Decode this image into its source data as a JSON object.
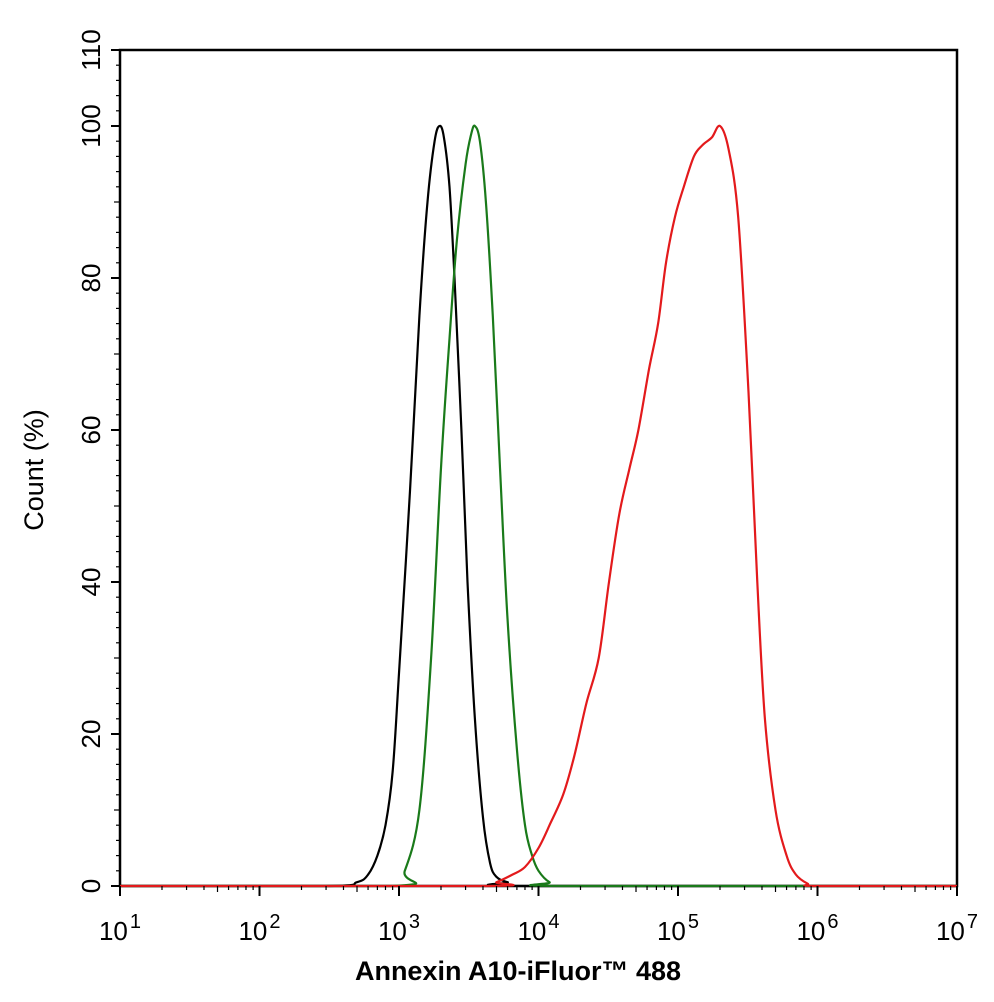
{
  "chart_data": {
    "type": "line",
    "xlabel": "Annexin A10-iFluor™ 488",
    "ylabel": "Count  (%)",
    "x_scale": "log",
    "xlim": [
      10,
      10000000
    ],
    "ylim": [
      0,
      110
    ],
    "grid": false,
    "legend": "none",
    "x_ticks": [
      {
        "value": 10,
        "base": "10",
        "exp": "1"
      },
      {
        "value": 100,
        "base": "10",
        "exp": "2"
      },
      {
        "value": 1000,
        "base": "10",
        "exp": "3"
      },
      {
        "value": 10000,
        "base": "10",
        "exp": "4"
      },
      {
        "value": 100000,
        "base": "10",
        "exp": "5"
      },
      {
        "value": 1000000,
        "base": "10",
        "exp": "6"
      },
      {
        "value": 10000000,
        "base": "10",
        "exp": "7"
      }
    ],
    "y_ticks": [
      0,
      20,
      40,
      60,
      80,
      100,
      110
    ],
    "y_ticks_labels": [
      "0",
      "20",
      "40",
      "60",
      "80",
      "100",
      "110"
    ],
    "series": [
      {
        "color": "#000000",
        "points": [
          [
            10,
            0
          ],
          [
            300,
            0
          ],
          [
            500,
            0.5
          ],
          [
            600,
            1.5
          ],
          [
            700,
            4
          ],
          [
            800,
            8
          ],
          [
            900,
            15
          ],
          [
            1000,
            28
          ],
          [
            1200,
            52
          ],
          [
            1400,
            75
          ],
          [
            1600,
            90
          ],
          [
            1800,
            98
          ],
          [
            1950,
            100
          ],
          [
            2100,
            98.5
          ],
          [
            2300,
            92
          ],
          [
            2500,
            80
          ],
          [
            2800,
            60
          ],
          [
            3100,
            40
          ],
          [
            3500,
            22
          ],
          [
            4000,
            9
          ],
          [
            4500,
            3
          ],
          [
            5000,
            1.2
          ],
          [
            6000,
            0.5
          ],
          [
            8000,
            0
          ],
          [
            10000000,
            0
          ]
        ]
      },
      {
        "color": "#1a7a1a",
        "points": [
          [
            10,
            0
          ],
          [
            900,
            0
          ],
          [
            1100,
            2
          ],
          [
            1400,
            10
          ],
          [
            1700,
            30
          ],
          [
            2000,
            55
          ],
          [
            2300,
            72
          ],
          [
            2600,
            85
          ],
          [
            3000,
            95
          ],
          [
            3300,
            99
          ],
          [
            3500,
            100
          ],
          [
            3800,
            98
          ],
          [
            4200,
            90
          ],
          [
            4700,
            75
          ],
          [
            5300,
            55
          ],
          [
            6000,
            35
          ],
          [
            7000,
            18
          ],
          [
            8000,
            8
          ],
          [
            9000,
            4
          ],
          [
            10000,
            2
          ],
          [
            12000,
            0.5
          ],
          [
            15000,
            0
          ],
          [
            10000000,
            0
          ]
        ]
      },
      {
        "color": "#e31a1c",
        "points": [
          [
            10,
            0
          ],
          [
            4000,
            0
          ],
          [
            5000,
            0.5
          ],
          [
            6500,
            1.5
          ],
          [
            8000,
            2.5
          ],
          [
            10000,
            5
          ],
          [
            12000,
            8
          ],
          [
            15000,
            12
          ],
          [
            18000,
            17
          ],
          [
            22000,
            24
          ],
          [
            27000,
            30
          ],
          [
            32000,
            40
          ],
          [
            38000,
            49
          ],
          [
            45000,
            55
          ],
          [
            52000,
            60
          ],
          [
            62000,
            68
          ],
          [
            72000,
            74
          ],
          [
            82000,
            82
          ],
          [
            95000,
            88
          ],
          [
            110000,
            92
          ],
          [
            130000,
            96
          ],
          [
            150000,
            97.5
          ],
          [
            175000,
            98.5
          ],
          [
            200000,
            100
          ],
          [
            230000,
            97
          ],
          [
            270000,
            88
          ],
          [
            320000,
            65
          ],
          [
            370000,
            40
          ],
          [
            420000,
            22
          ],
          [
            500000,
            10
          ],
          [
            600000,
            4
          ],
          [
            700000,
            1.5
          ],
          [
            850000,
            0.3
          ],
          [
            1000000,
            0
          ],
          [
            10000000,
            0
          ]
        ]
      }
    ]
  }
}
